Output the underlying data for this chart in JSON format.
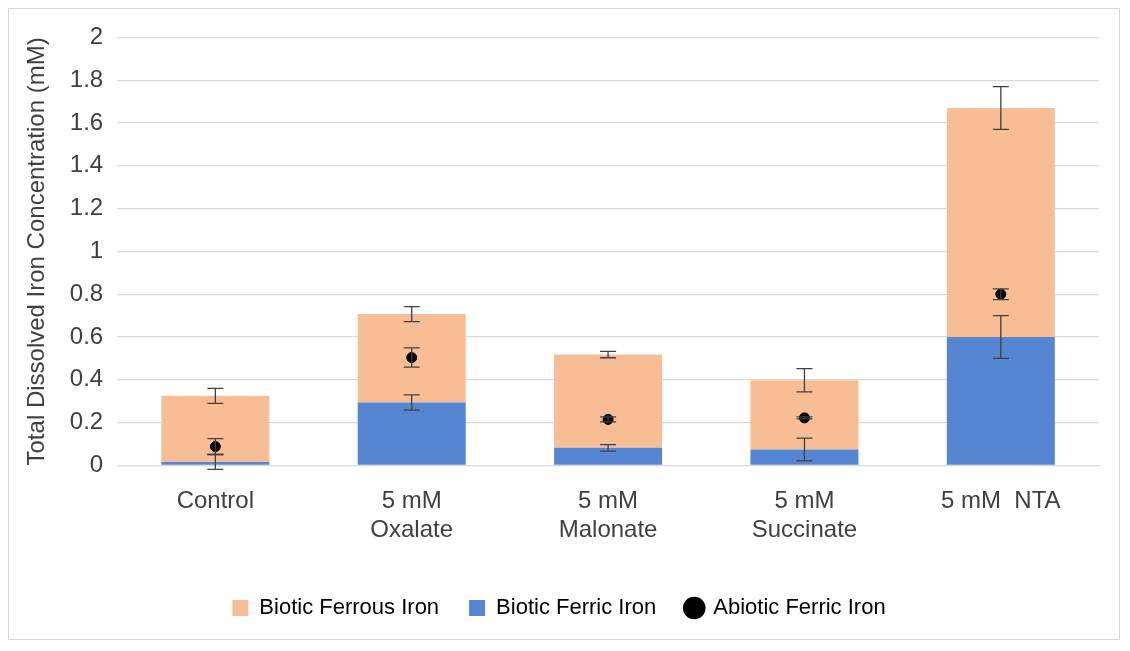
{
  "chart_data": {
    "type": "bar",
    "stacked": true,
    "ylabel": "Total Dissolved Iron Concentration (mM)",
    "categories": [
      "Control",
      "5 mM\nOxalate",
      "5 mM\nMalonate",
      "5 mM\nSuccinate",
      "5 mM  NTA"
    ],
    "series": [
      {
        "name": "Biotic Ferric Iron",
        "color": "#5586d1",
        "values": [
          0.016,
          0.294,
          0.082,
          0.074,
          0.6
        ],
        "errors": [
          0.035,
          0.036,
          0.015,
          0.053,
          0.1
        ]
      },
      {
        "name": "Biotic Ferrous Iron",
        "color": "#f7be95",
        "values": [
          0.309,
          0.413,
          0.436,
          0.324,
          1.07
        ],
        "errors": [
          0.035,
          0.035,
          0.015,
          0.054,
          0.1
        ]
      },
      {
        "name": "Abiotic Ferric Iron",
        "type": "scatter",
        "color": "#000000",
        "x": [
          "Control",
          "5 mM\nOxalate",
          "5 mM\nMalonate",
          "5 mM\nSuccinate",
          "5 mM  NTA"
        ],
        "values": [
          0.088,
          0.504,
          0.215,
          0.222,
          0.8
        ],
        "errors": [
          0.037,
          0.045,
          0.012,
          0.005,
          0.025
        ]
      }
    ],
    "ylim": [
      0,
      2
    ],
    "yticks": [
      0,
      0.2,
      0.4,
      0.6,
      0.8,
      1,
      1.2,
      1.4,
      1.6,
      1.8,
      2
    ],
    "grid": "y",
    "legend": "bottom",
    "marker": "circle"
  }
}
